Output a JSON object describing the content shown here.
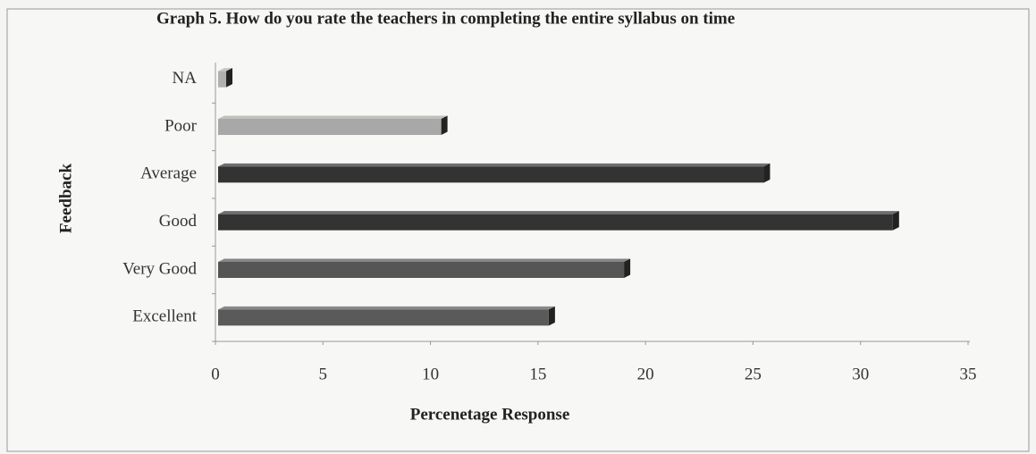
{
  "chart_data": {
    "type": "bar",
    "orientation": "horizontal",
    "title": "Graph  5. How do you rate the teachers in completing the entire syllabus on time",
    "x_label": "Percenetage Response",
    "y_label": "Feedback",
    "categories": [
      "NA",
      "Poor",
      "Average",
      "Good",
      "Very Good",
      "Excellent"
    ],
    "values": [
      0.5,
      10.5,
      25.5,
      31.5,
      19,
      15.5
    ],
    "colors": [
      "#b0b0b0",
      "#a8a8a8",
      "#333333",
      "#333333",
      "#555555",
      "#5a5a5a"
    ],
    "xlim": [
      0,
      35
    ],
    "xticks": [
      0,
      5,
      10,
      15,
      20,
      25,
      30,
      35
    ],
    "grid": false
  }
}
